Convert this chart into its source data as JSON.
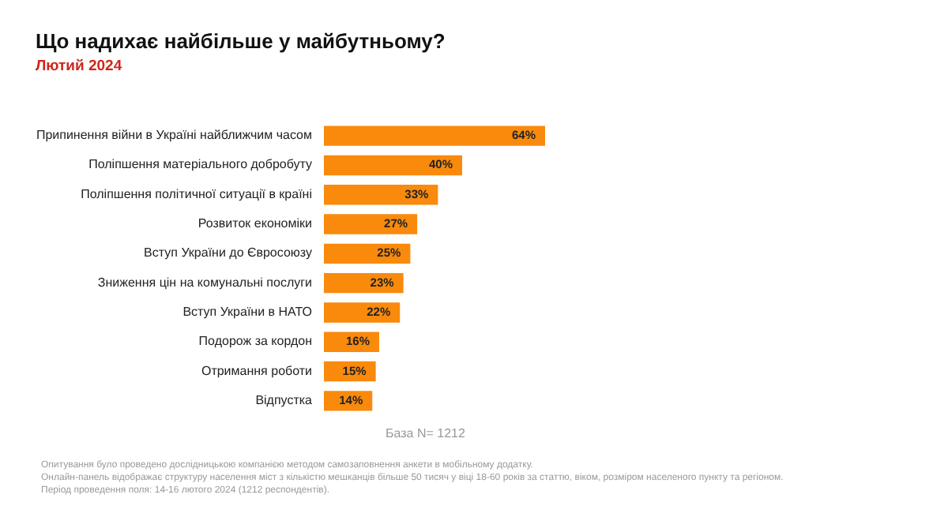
{
  "chart_data": {
    "type": "bar",
    "orientation": "horizontal",
    "title": "Що надихає найбільше у майбутньому?",
    "subtitle": "Лютий 2024",
    "categories": [
      "Припинення війни в Україні найближчим часом",
      "Поліпшення матеріального добробуту",
      "Поліпшення політичної ситуації в країні",
      "Розвиток економіки",
      "Вступ України до Євросоюзу",
      "Зниження цін на комунальні послуги",
      "Вступ України в НАТО",
      "Подорож за кордон",
      "Отримання роботи",
      "Відпустка"
    ],
    "values": [
      64,
      40,
      33,
      27,
      25,
      23,
      22,
      16,
      15,
      14
    ],
    "value_labels": [
      "64%",
      "40%",
      "33%",
      "27%",
      "25%",
      "23%",
      "22%",
      "16%",
      "15%",
      "14%"
    ],
    "color": "#f98a0c",
    "annotations": [
      "База N=  1212",
      "Опитування було проведено дослідницькою компанією методом самозаповнення анкети в мобільному додатку.",
      "Онлайн-панель відображає структуру населення міст з кількістю мешканців більше 50 тисяч у віці 18-60 років за статтю, віком, розміром населеного пункту та регіоном.",
      "Період проведення поля: 14-16 лютого 2024 (1212 респондентів)."
    ]
  }
}
